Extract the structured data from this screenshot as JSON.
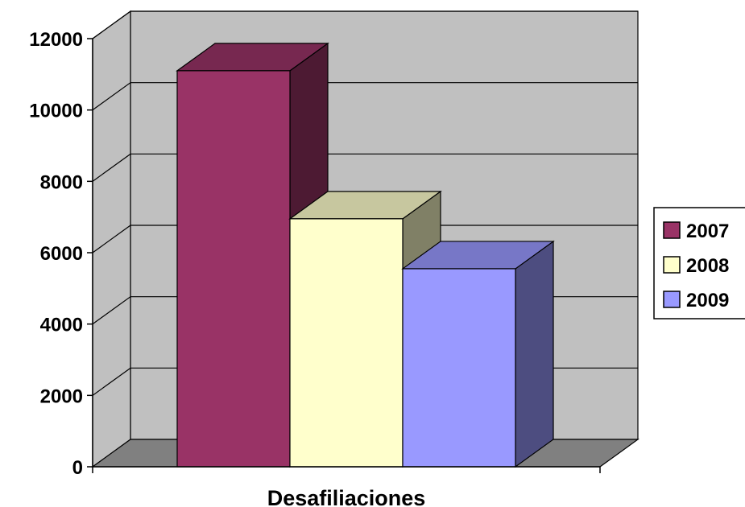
{
  "chart_data": {
    "type": "bar",
    "categories": [
      "Desafiliaciones"
    ],
    "series": [
      {
        "name": "2007",
        "values": [
          11100
        ],
        "color": "#993366"
      },
      {
        "name": "2008",
        "values": [
          6950
        ],
        "color": "#ffffcc"
      },
      {
        "name": "2009",
        "values": [
          5550
        ],
        "color": "#9999ff"
      }
    ],
    "xlabel": "Desafiliaciones",
    "ylabel": "",
    "ylim": [
      0,
      12000
    ],
    "yticks": [
      0,
      2000,
      4000,
      6000,
      8000,
      10000,
      12000
    ],
    "ytick_labels": [
      "0",
      "2000",
      "4000",
      "6000",
      "8000",
      "10000",
      "12000"
    ],
    "grid": true,
    "legend_position": "right",
    "three_d": true,
    "colors": {
      "wall": "#c0c0c0",
      "floor": "#808080"
    }
  }
}
